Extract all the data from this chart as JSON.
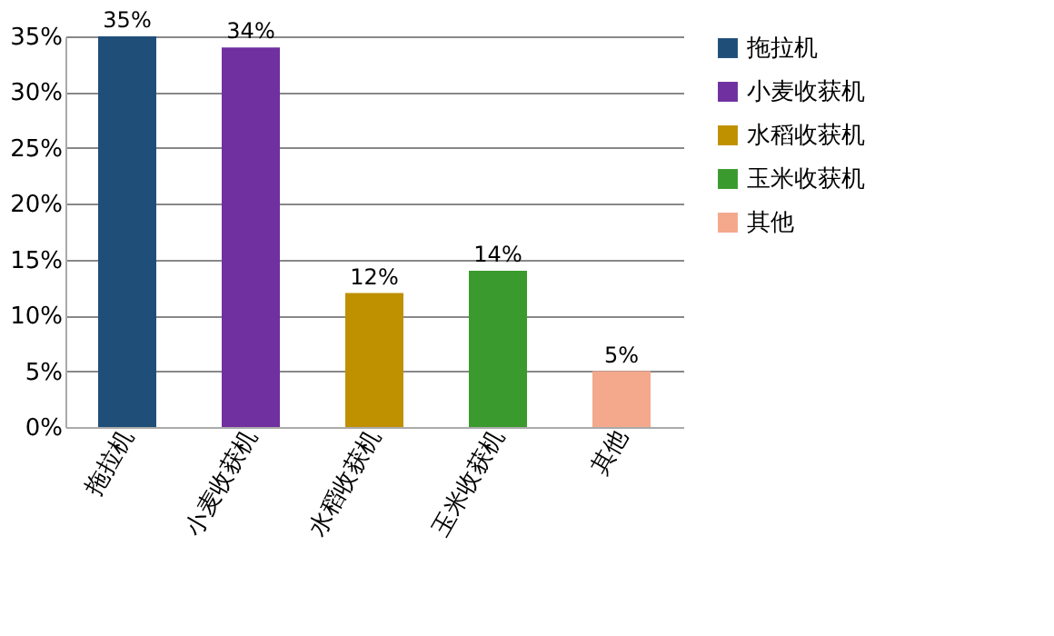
{
  "chart_data": {
    "type": "bar",
    "categories": [
      "拖拉机",
      "小麦收获机",
      "水稻收获机",
      "玉米收获机",
      "其他"
    ],
    "series": [
      {
        "name": "拖拉机",
        "color": "#1f4e79",
        "values": [
          35,
          null,
          null,
          null,
          null
        ],
        "value_labels": [
          "35%",
          null,
          null,
          null,
          null
        ]
      },
      {
        "name": "小麦收获机",
        "color": "#7030a0",
        "values": [
          null,
          34,
          null,
          null,
          null
        ],
        "value_labels": [
          null,
          "34%",
          null,
          null,
          null
        ]
      },
      {
        "name": "水稻收获机",
        "color": "#bf9000",
        "values": [
          null,
          null,
          12,
          null,
          null
        ],
        "value_labels": [
          null,
          null,
          "12%",
          null,
          null
        ]
      },
      {
        "name": "玉米收获机",
        "color": "#3a9a2e",
        "values": [
          null,
          null,
          null,
          14,
          null
        ],
        "value_labels": [
          null,
          null,
          null,
          "14%",
          null
        ]
      },
      {
        "name": "其他",
        "color": "#f4a88c",
        "values": [
          null,
          null,
          null,
          null,
          5
        ],
        "value_labels": [
          null,
          null,
          null,
          null,
          "5%"
        ]
      }
    ],
    "ylim": [
      0,
      35
    ],
    "yticks": [
      {
        "value": 0,
        "label": "0%"
      },
      {
        "value": 5,
        "label": "5%"
      },
      {
        "value": 10,
        "label": "10%"
      },
      {
        "value": 15,
        "label": "15%"
      },
      {
        "value": 20,
        "label": "20%"
      },
      {
        "value": 25,
        "label": "25%"
      },
      {
        "value": 30,
        "label": "30%"
      },
      {
        "value": 35,
        "label": "35%"
      }
    ],
    "grid": "y",
    "legend": "right"
  }
}
